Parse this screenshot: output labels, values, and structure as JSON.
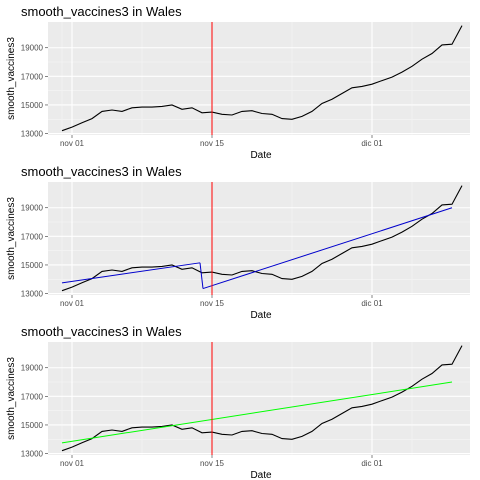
{
  "chart_data": [
    {
      "type": "line",
      "title": "smooth_vaccines3 in Wales",
      "xlabel": "Date",
      "ylabel": "smooth_vaccines3",
      "x_ticks": [
        "nov 01",
        "nov 15",
        "dic 01"
      ],
      "y_ticks": [
        13000,
        15000,
        17000,
        19000
      ],
      "ylim": [
        12900,
        20800
      ],
      "xlim_days": [
        0,
        41
      ],
      "grid": true,
      "vline": {
        "day": 14,
        "color": "#ff0000"
      },
      "series": [
        {
          "day_offsets": [
            -1,
            0,
            1,
            2,
            3,
            4,
            5,
            6,
            7,
            8,
            9,
            10,
            11,
            12,
            13,
            14,
            15,
            16,
            17,
            18,
            19,
            20,
            21,
            22,
            23,
            24,
            25,
            26,
            27,
            28,
            29,
            30,
            31,
            32,
            33,
            34,
            35,
            36,
            37,
            38
          ],
          "values": [
            13200,
            13450,
            13750,
            14050,
            14550,
            14650,
            14550,
            14800,
            14850,
            14850,
            14900,
            15000,
            14700,
            14800,
            14450,
            14500,
            14350,
            14300,
            14550,
            14600,
            14400,
            14350,
            14050,
            14000,
            14200,
            14550,
            15100,
            15400,
            15800,
            16200,
            16300,
            16450,
            16700,
            16950,
            17300,
            17700,
            18200,
            18600,
            19200,
            19250
          ],
          "color": "#000000"
        }
      ],
      "fits": []
    },
    {
      "type": "line",
      "title": "smooth_vaccines3 in Wales",
      "xlabel": "Date",
      "ylabel": "smooth_vaccines3",
      "x_ticks": [
        "nov 01",
        "nov 15",
        "dic 01"
      ],
      "y_ticks": [
        13000,
        15000,
        17000,
        19000
      ],
      "ylim": [
        12900,
        20800
      ],
      "xlim_days": [
        0,
        41
      ],
      "grid": true,
      "vline": {
        "day": 14,
        "color": "#ff0000"
      },
      "series": [
        {
          "values": [
            13200,
            13450,
            13750,
            14050,
            14550,
            14650,
            14550,
            14800,
            14850,
            14850,
            14900,
            15000,
            14700,
            14800,
            14450,
            14500,
            14350,
            14300,
            14550,
            14600,
            14400,
            14350,
            14050,
            14000,
            14200,
            14550,
            15100,
            15400,
            15800,
            16200,
            16300,
            16450,
            16700,
            16950,
            17300,
            17700,
            18200,
            18600,
            19200,
            19250
          ],
          "color": "#000000"
        }
      ],
      "fits": [
        {
          "day_start": -1,
          "day_end": 12.8,
          "y_start": 13750,
          "y_end": 15150,
          "color": "#0000cc"
        },
        {
          "day_start": 12.8,
          "day_end": 13.1,
          "y_start": 15150,
          "y_end": 13350,
          "color": "#0000cc"
        },
        {
          "day_start": 13.1,
          "day_end": 38,
          "y_start": 13350,
          "y_end": 19000,
          "color": "#0000cc"
        }
      ]
    },
    {
      "type": "line",
      "title": "smooth_vaccines3 in Wales",
      "xlabel": "Date",
      "ylabel": "smooth_vaccines3",
      "x_ticks": [
        "nov 01",
        "nov 15",
        "dic 01"
      ],
      "y_ticks": [
        13000,
        15000,
        17000,
        19000
      ],
      "ylim": [
        12900,
        20800
      ],
      "xlim_days": [
        0,
        41
      ],
      "grid": true,
      "vline": {
        "day": 14,
        "color": "#ff0000"
      },
      "series": [
        {
          "values": [
            13200,
            13450,
            13750,
            14050,
            14550,
            14650,
            14550,
            14800,
            14850,
            14850,
            14900,
            15000,
            14700,
            14800,
            14450,
            14500,
            14350,
            14300,
            14550,
            14600,
            14400,
            14350,
            14050,
            14000,
            14200,
            14550,
            15100,
            15400,
            15800,
            16200,
            16300,
            16450,
            16700,
            16950,
            17300,
            17700,
            18200,
            18600,
            19200,
            19250
          ],
          "color": "#000000"
        }
      ],
      "fits": [
        {
          "day_start": -1,
          "day_end": 38,
          "y_start": 13750,
          "y_end": 18000,
          "color": "#00ff00"
        }
      ]
    }
  ]
}
